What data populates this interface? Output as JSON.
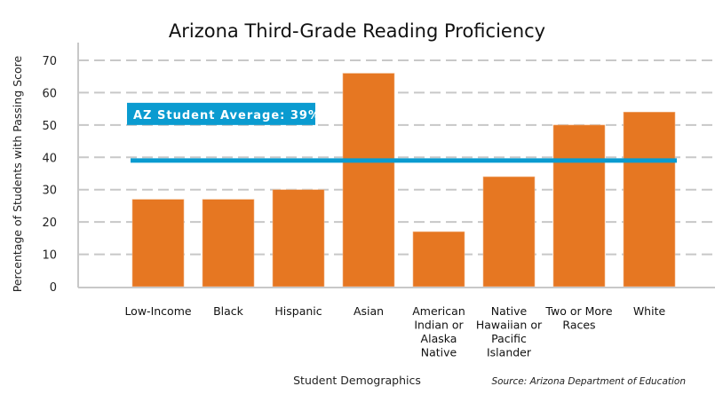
{
  "chart_data": {
    "type": "bar",
    "title": "Arizona Third-Grade Reading Proficiency",
    "xlabel": "Student Demographics",
    "ylabel": "Percentage of Students with Passing Score",
    "ylim": [
      0,
      70
    ],
    "yticks": [
      0,
      10,
      20,
      30,
      40,
      50,
      60,
      70
    ],
    "grid": true,
    "categories": [
      [
        "Low-Income"
      ],
      [
        "Black"
      ],
      [
        "Hispanic"
      ],
      [
        "Asian"
      ],
      [
        "American",
        "Indian or",
        "Alaska",
        "Native"
      ],
      [
        "Native",
        "Hawaiian or",
        "Pacific",
        "Islander"
      ],
      [
        "Two or More",
        "Races"
      ],
      [
        "White"
      ]
    ],
    "values": [
      27,
      27,
      30,
      66,
      17,
      34,
      50,
      54
    ],
    "reference_line": {
      "label": "AZ Student Average: 39%",
      "value": 39
    },
    "source": "Source: Arizona Department of Education",
    "colors": {
      "bar": "#E67722",
      "reference": "#0A9BD0",
      "grid": "#C8C8C8",
      "axis": "#C8C8C8"
    }
  }
}
